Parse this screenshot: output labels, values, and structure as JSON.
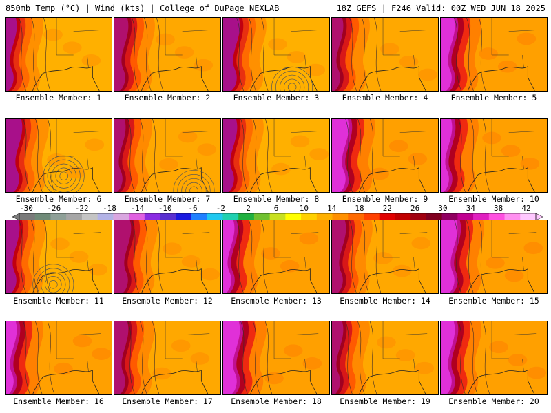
{
  "header": {
    "left": "850mb Temp (°C) | Wind (kts) | College of DuPage NEXLAB",
    "right": "18Z GEFS | F246 Valid: 00Z WED JUN 18 2025"
  },
  "member_label_prefix": "Ensemble Member: ",
  "members": [
    {
      "number": "1",
      "style": "cool"
    },
    {
      "number": "2",
      "style": "warm"
    },
    {
      "number": "3",
      "style": "cool",
      "cyclone": [
        0.65,
        0.95
      ]
    },
    {
      "number": "4",
      "style": "warm"
    },
    {
      "number": "5",
      "style": "hot"
    },
    {
      "number": "6",
      "style": "cool",
      "cyclone": [
        0.55,
        0.78
      ]
    },
    {
      "number": "7",
      "style": "warm",
      "cyclone": [
        0.75,
        0.98
      ]
    },
    {
      "number": "8",
      "style": "cool"
    },
    {
      "number": "9",
      "style": "hot"
    },
    {
      "number": "10",
      "style": "hot"
    },
    {
      "number": "11",
      "style": "cool",
      "cyclone": [
        0.45,
        0.88
      ]
    },
    {
      "number": "12",
      "style": "warm"
    },
    {
      "number": "13",
      "style": "hot"
    },
    {
      "number": "14",
      "style": "warm"
    },
    {
      "number": "15",
      "style": "hot"
    },
    {
      "number": "16",
      "style": "hot"
    },
    {
      "number": "17",
      "style": "warm"
    },
    {
      "number": "18",
      "style": "hot"
    },
    {
      "number": "19",
      "style": "warm"
    },
    {
      "number": "20",
      "style": "hot"
    }
  ],
  "colorbar": {
    "labels": [
      "-30",
      "-26",
      "-22",
      "-18",
      "-14",
      "-10",
      "-6",
      "-2",
      "2",
      "6",
      "10",
      "14",
      "18",
      "22",
      "26",
      "30",
      "34",
      "38",
      "42"
    ],
    "colors": [
      "#7a7a7a",
      "#6f8a78",
      "#8fa098",
      "#a6a6a6",
      "#c4c4c4",
      "#b3b3e6",
      "#d9a6e0",
      "#e060e0",
      "#8a2be2",
      "#5a30d0",
      "#1a1ae0",
      "#2080ff",
      "#20c8f0",
      "#20d0b0",
      "#20b040",
      "#70c030",
      "#c8e020",
      "#ffff00",
      "#ffd000",
      "#ffb000",
      "#ff9000",
      "#ff6a00",
      "#ff4000",
      "#e00000",
      "#c00000",
      "#a00010",
      "#800020",
      "#900060",
      "#c00090",
      "#e020c0",
      "#ff50e0",
      "#ff90f0",
      "#ffc8ff"
    ]
  }
}
